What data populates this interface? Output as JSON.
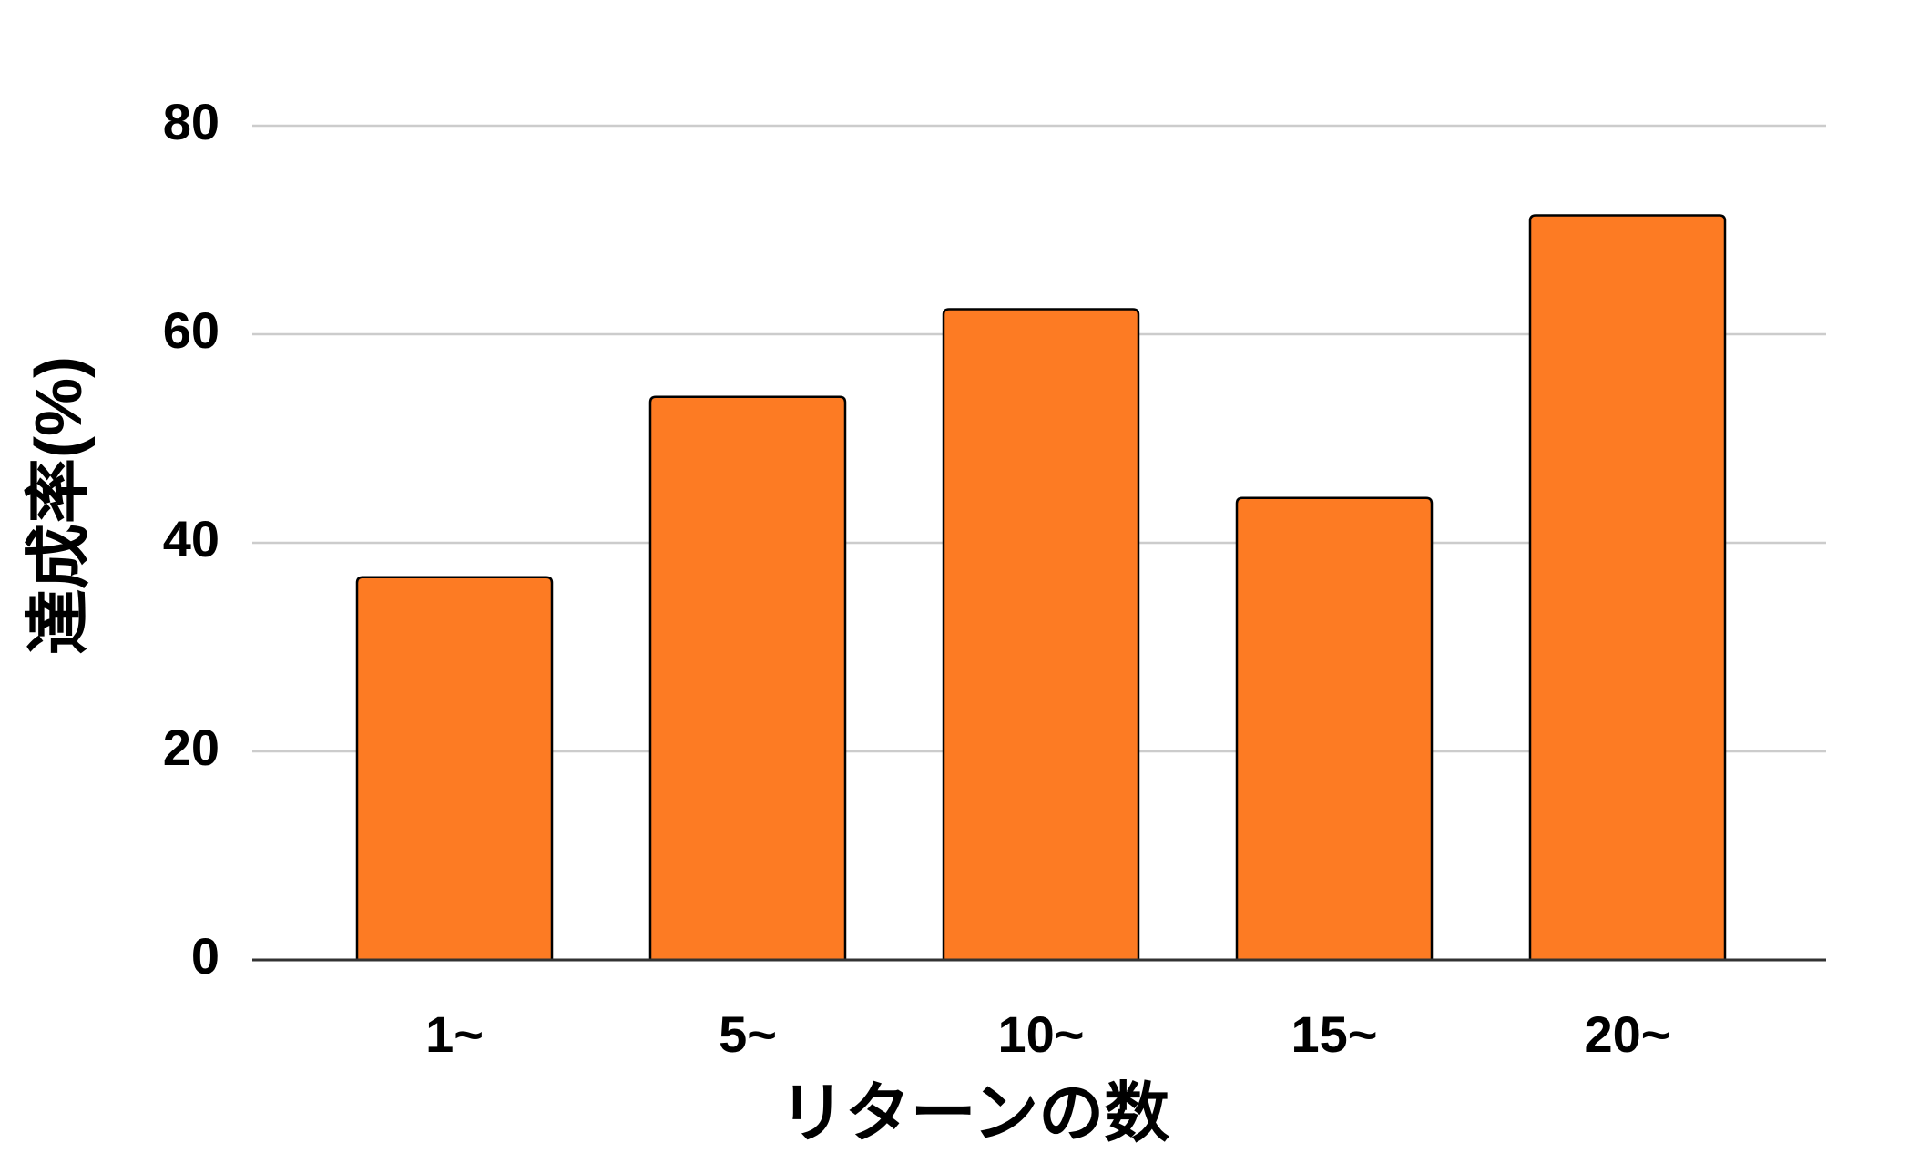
{
  "chart_data": {
    "type": "bar",
    "x_label": "リターンの数",
    "y_label": "達成率(%)",
    "categories": [
      "1~",
      "5~",
      "10~",
      "15~",
      "20~"
    ],
    "values": [
      36.7,
      54.0,
      62.4,
      44.3,
      71.4
    ],
    "color": "#fd7b23",
    "ylim": [
      0,
      80
    ],
    "yticks": [
      0,
      20,
      40,
      60,
      80
    ],
    "grid": true
  }
}
